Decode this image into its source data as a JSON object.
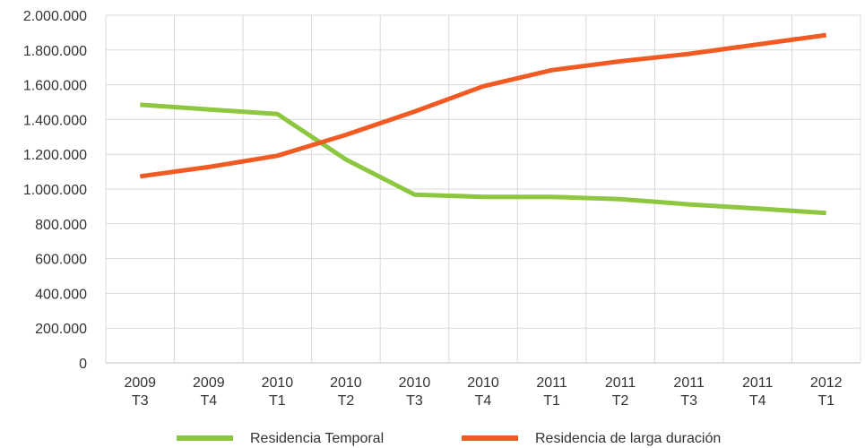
{
  "chart_data": {
    "type": "line",
    "title": "",
    "xlabel": "",
    "ylabel": "",
    "categories": [
      [
        "2009",
        "T3"
      ],
      [
        "2009",
        "T4"
      ],
      [
        "2010",
        "T1"
      ],
      [
        "2010",
        "T2"
      ],
      [
        "2010",
        "T3"
      ],
      [
        "2010",
        "T4"
      ],
      [
        "2011",
        "T1"
      ],
      [
        "2011",
        "T2"
      ],
      [
        "2011",
        "T3"
      ],
      [
        "2011",
        "T4"
      ],
      [
        "2012",
        "T1"
      ]
    ],
    "series": [
      {
        "name": "Residencia Temporal",
        "color": "#8dc63f",
        "values": [
          1485000,
          1458000,
          1432000,
          1170000,
          968000,
          955000,
          955000,
          942000,
          912000,
          888000,
          862000
        ]
      },
      {
        "name": "Residencia de larga duración",
        "color": "#f15a22",
        "values": [
          1073000,
          1127000,
          1192000,
          1312000,
          1446000,
          1591000,
          1684000,
          1735000,
          1778000,
          1832000,
          1886000
        ]
      }
    ],
    "ylim": [
      0,
      2000000
    ],
    "y_ticks": [
      "0",
      "200.000",
      "400.000",
      "600.000",
      "800.000",
      "1.000.000",
      "1.200.000",
      "1.400.000",
      "1.600.000",
      "1.800.000",
      "2.000.000"
    ],
    "grid": "horizontal",
    "legend_position": "bottom"
  }
}
